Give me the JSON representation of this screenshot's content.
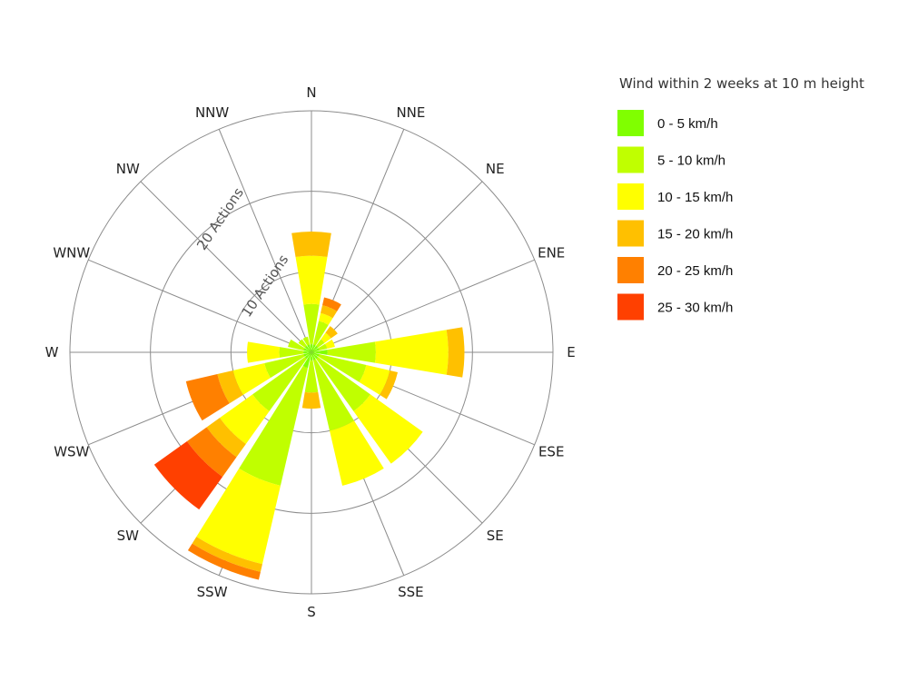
{
  "chart_data": {
    "type": "wind-rose",
    "unit": "Actions",
    "directions": [
      "N",
      "NNE",
      "NE",
      "ENE",
      "E",
      "ESE",
      "SE",
      "SSE",
      "S",
      "SSW",
      "SW",
      "WSW",
      "W",
      "WNW",
      "NW",
      "NNW"
    ],
    "rings": [
      10,
      20,
      30
    ],
    "ring_labels": [
      "10 Actions",
      "20 Actions"
    ],
    "rmax": 30,
    "legend": {
      "title": "Wind within 2 weeks at 10 m height",
      "position": "right"
    },
    "series": [
      {
        "name": "0 - 5 km/h",
        "color": "#80ff00",
        "values": [
          1,
          1,
          1,
          1,
          2,
          1,
          1,
          1,
          1,
          2,
          1,
          1,
          1,
          1,
          1,
          1
        ]
      },
      {
        "name": "5 - 10 km/h",
        "color": "#c0ff00",
        "values": [
          5,
          3,
          1,
          1,
          6,
          6,
          8,
          9,
          4,
          15,
          8,
          5,
          3,
          2,
          1,
          1
        ]
      },
      {
        "name": "10 - 15 km/h",
        "color": "#ffff00",
        "values": [
          6,
          1,
          1,
          1,
          9,
          3,
          8,
          7,
          0,
          10,
          5,
          4,
          4,
          0,
          0,
          0
        ]
      },
      {
        "name": "15 - 20 km/h",
        "color": "#ffc000",
        "values": [
          3,
          1,
          1,
          0,
          2,
          1,
          0,
          0,
          2,
          1,
          2,
          2,
          0,
          0,
          0,
          0
        ]
      },
      {
        "name": "20 - 25 km/h",
        "color": "#ff8000",
        "values": [
          0,
          1,
          0,
          0,
          0,
          0,
          0,
          0,
          0,
          1,
          3,
          4,
          0,
          0,
          0,
          0
        ]
      },
      {
        "name": "25 - 30 km/h",
        "color": "#ff4000",
        "values": [
          0,
          0,
          0,
          0,
          0,
          0,
          0,
          0,
          0,
          0,
          5,
          0,
          0,
          0,
          0,
          0
        ]
      }
    ]
  }
}
